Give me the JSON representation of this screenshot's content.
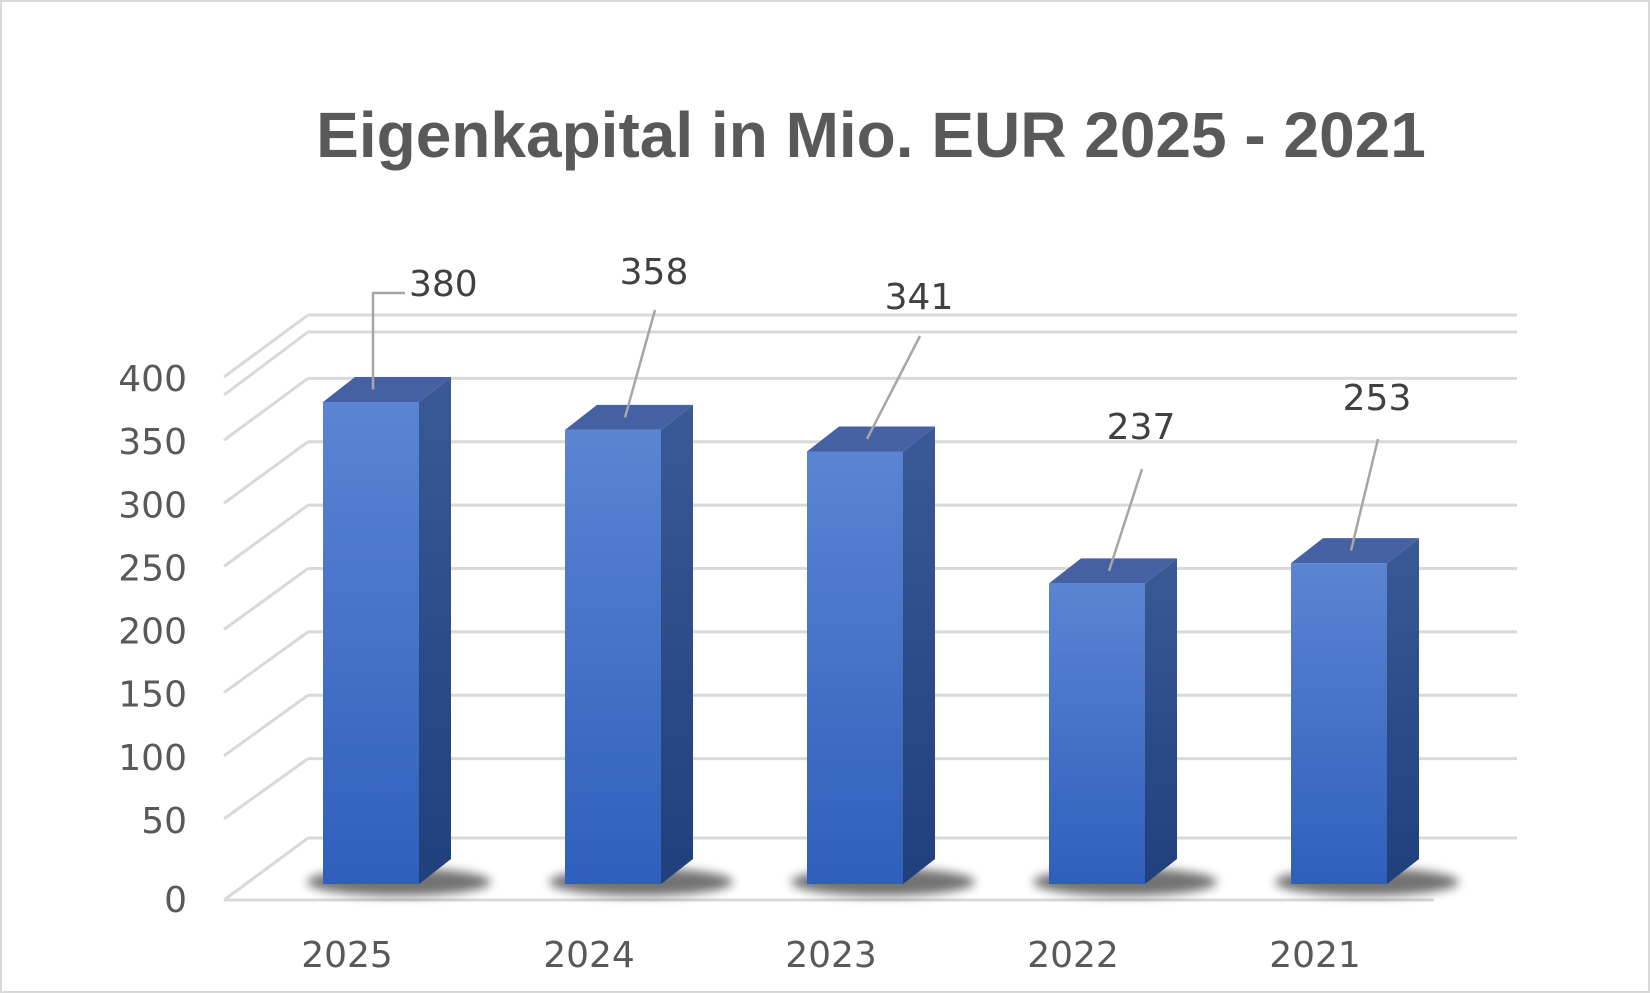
{
  "chart_data": {
    "type": "bar",
    "title": "Eigenkapital in Mio. EUR 2025 - 2021",
    "categories": [
      "2025",
      "2024",
      "2023",
      "2022",
      "2021"
    ],
    "values": [
      380,
      358,
      341,
      237,
      253
    ],
    "data_labels": [
      "380",
      "358",
      "341",
      "237",
      "253"
    ],
    "y_ticks": [
      "0",
      "50",
      "100",
      "150",
      "200",
      "250",
      "300",
      "350",
      "400"
    ],
    "ylim": [
      0,
      400
    ],
    "xlabel": "",
    "ylabel": "",
    "grid": true,
    "legend": "none",
    "style": "3d-column",
    "colors": {
      "bar_front_top": "#5b84d2",
      "bar_front_bottom": "#2f5fbc",
      "bar_side": "#26457f",
      "bar_top": "#4661a3",
      "gridline": "#d9d9d9",
      "text": "#595959",
      "leader": "#a6a6a6"
    }
  }
}
